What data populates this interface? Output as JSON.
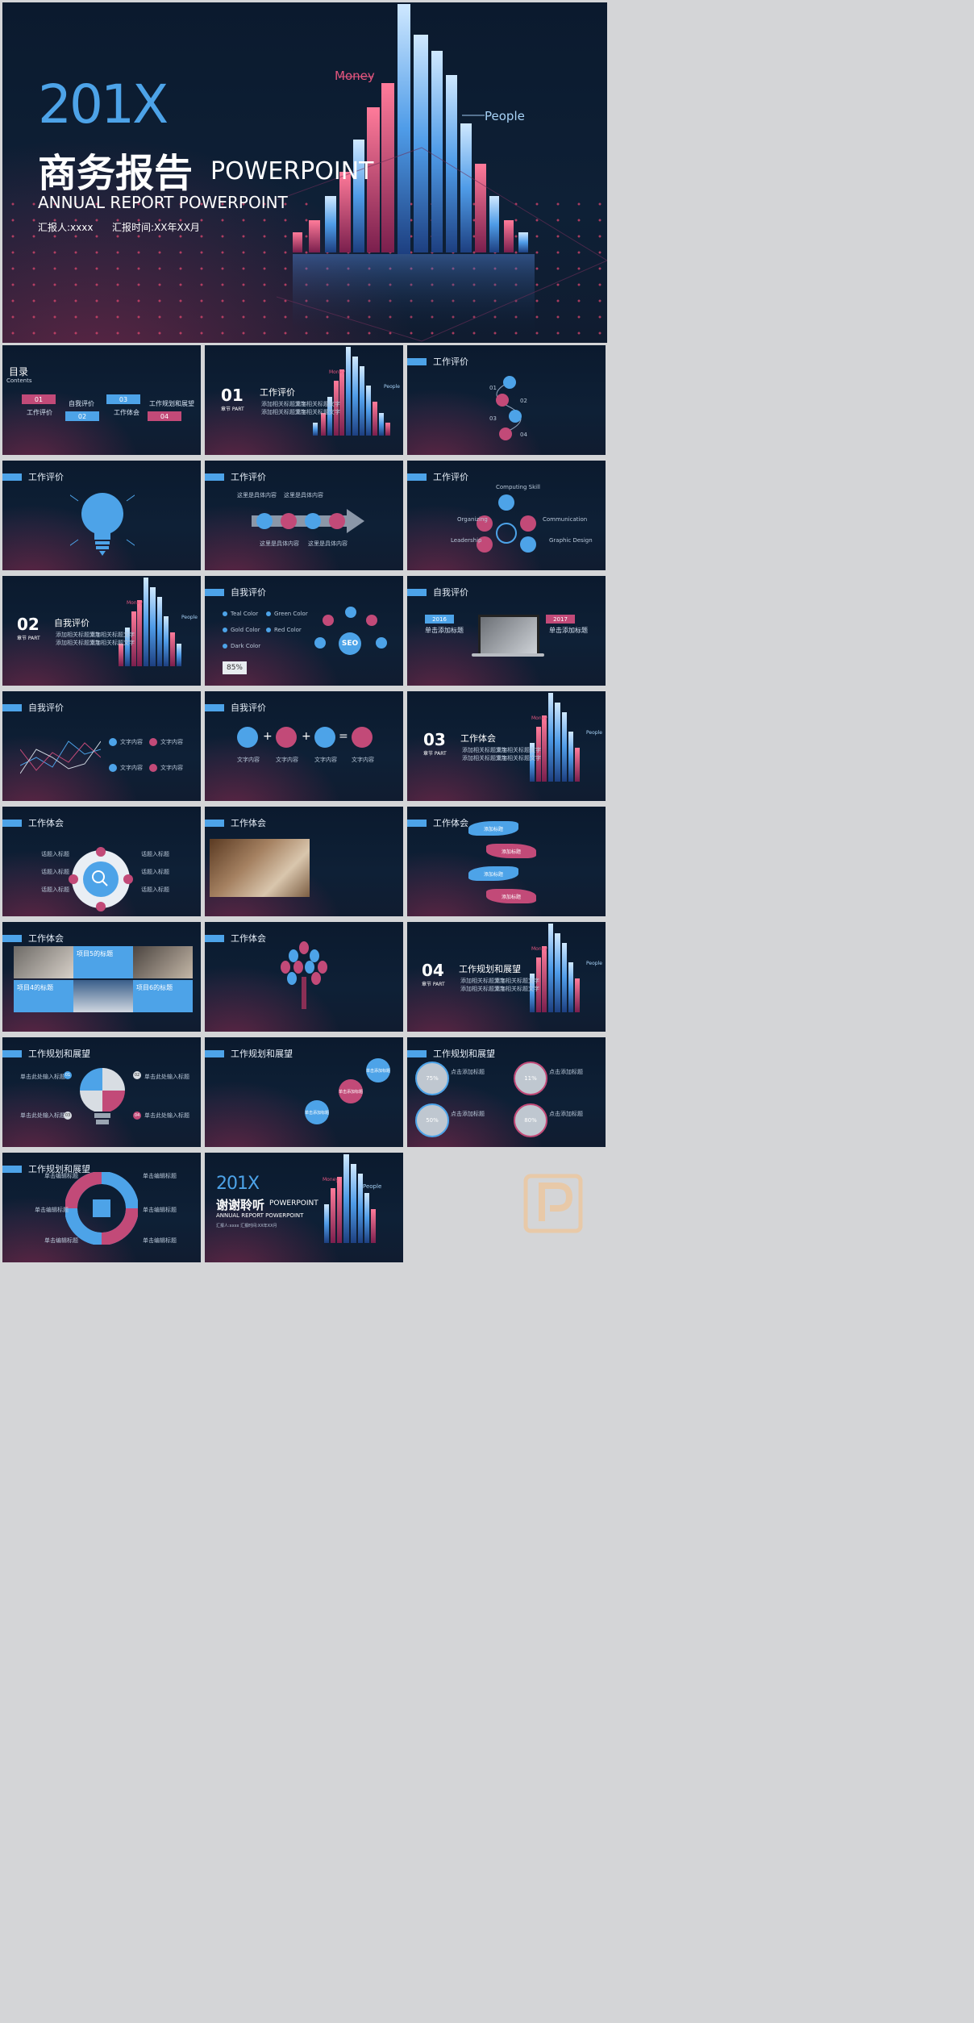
{
  "colors": {
    "blue": "#4da3e8",
    "pink": "#c24a78",
    "bg": "#0d1d33"
  },
  "cover": {
    "year": "201X",
    "title_cn": "商务报告",
    "title_en": "POWERPOINT",
    "subtitle": "ANNUAL REPORT POWERPOINT",
    "reporter": "汇报人:xxxx",
    "report_time": "汇报时间:XX年XX月",
    "money": "Money",
    "people": "People"
  },
  "toc": {
    "title": "目录",
    "subtitle": "Contents",
    "items": [
      {
        "num": "01",
        "label": "工作评价"
      },
      {
        "num": "02",
        "label": "自我评价"
      },
      {
        "num": "03",
        "label": "工作体会"
      },
      {
        "num": "04",
        "label": "工作规划和展望"
      }
    ]
  },
  "section_part": "章节 PART",
  "bullet": "添加相关标题文字",
  "sections": [
    {
      "num": "01",
      "title": "工作评价"
    },
    {
      "num": "02",
      "title": "自我评价"
    },
    {
      "num": "03",
      "title": "工作体会"
    },
    {
      "num": "04",
      "title": "工作规划和展望"
    }
  ],
  "headers": {
    "work_eval": "工作评价",
    "self_eval": "自我评价",
    "work_exp": "工作体会",
    "plan": "工作规划和展望"
  },
  "slide3": {
    "nums": [
      "01",
      "02",
      "03",
      "04"
    ]
  },
  "slide5": {
    "label": "这里是具体内容"
  },
  "slide6": {
    "labels": [
      "Computing Skill",
      "Organizing",
      "Communication",
      "Leadership",
      "Graphic Design"
    ]
  },
  "slide8": {
    "colors": [
      "Teal Color",
      "Green Color",
      "Gold Color",
      "Red Color",
      "Dark Color"
    ],
    "percent": "85%",
    "seo": "SEO"
  },
  "slide9": {
    "years": [
      "2016",
      "2017"
    ],
    "heading": "单击添加标题"
  },
  "slide11": {
    "heading": "文字内容"
  },
  "slide14": {
    "heading": "话题入标题"
  },
  "slide16": {
    "label": "添加标题"
  },
  "slide17": {
    "titles": [
      "项目5的标题",
      "项目4的标题",
      "项目6的标题"
    ]
  },
  "slide20": {
    "title": "单击此处输入标题",
    "nums": [
      "01",
      "02",
      "03",
      "04"
    ]
  },
  "slide21": {
    "label": "单击添加标题"
  },
  "slide22": {
    "title": "点击添加标题",
    "percents": [
      "75%",
      "11%",
      "50%",
      "80%"
    ]
  },
  "slide23": {
    "label": "单击编辑标题"
  },
  "final": {
    "year": "201X",
    "thanks": "谢谢聆听",
    "en": "POWERPOINT",
    "subtitle": "ANNUAL REPORT POWERPOINT",
    "small": "汇报人:xxxx   汇报时间:XX年XX月"
  }
}
